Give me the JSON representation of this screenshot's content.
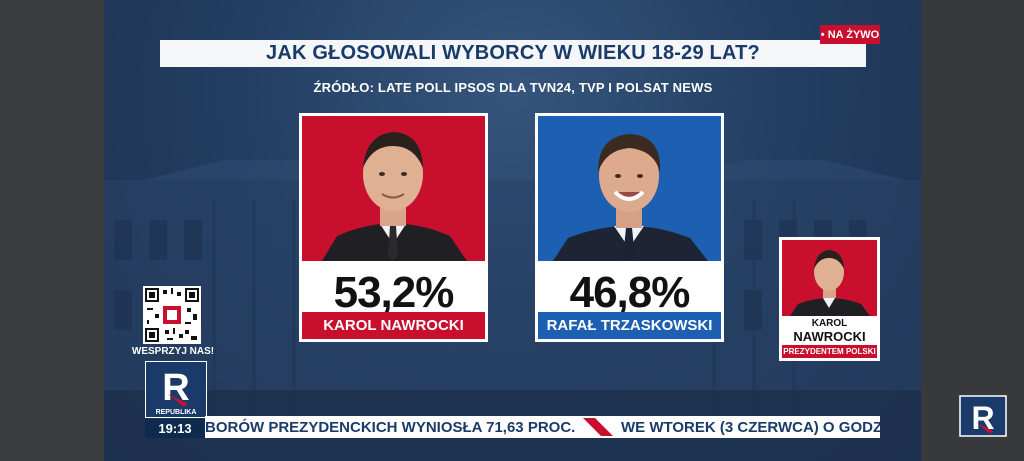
{
  "headline": "JAK GŁOSOWALI WYBORCY W WIEKU 18-29 LAT?",
  "live_badge": "• NA ŻYWO",
  "source": "ŹRÓDŁO: LATE POLL IPSOS DLA TVN24, TVP I POLSAT NEWS",
  "candidates": [
    {
      "name": "KAROL NAWROCKI",
      "percent": "53,2%",
      "color": "#c8102e"
    },
    {
      "name": "RAFAŁ TRZASKOWSKI",
      "percent": "46,8%",
      "color": "#1d5fb0"
    }
  ],
  "mini_card": {
    "line1": "KAROL",
    "line2": "NAWROCKI",
    "bar": "PREZYDENTEM POLSKI"
  },
  "qr_label": "WESPRZYJ NAS!",
  "logo": {
    "letter": "R",
    "text": "REPUBLIKA"
  },
  "clock": "19:13",
  "ticker": {
    "left": "BORÓW PREZYDENCKICH WYNIOSŁA 71,63 PROC.",
    "right": "WE WTOREK (3 CZERWCA) O GODZ"
  },
  "colors": {
    "navy": "#1a3b69",
    "red": "#c8102e",
    "blue": "#1d5fb0"
  }
}
